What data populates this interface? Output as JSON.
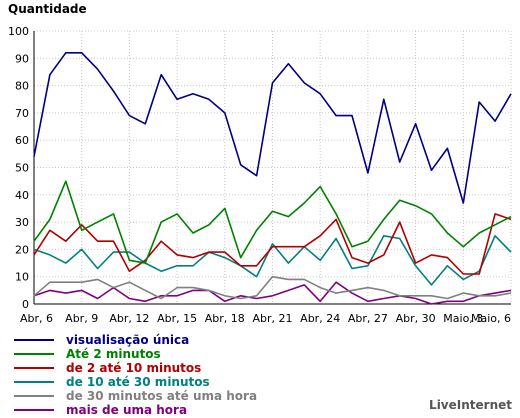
{
  "chart_data": {
    "type": "line",
    "ylabel": "Quantidade",
    "ylim": [
      0,
      100
    ],
    "yticks": [
      0,
      10,
      20,
      30,
      40,
      50,
      60,
      70,
      80,
      90,
      100
    ],
    "grid": true,
    "x": [
      "Abr, 6",
      "Abr, 7",
      "Abr, 8",
      "Abr, 9",
      "Abr, 10",
      "Abr, 11",
      "Abr, 12",
      "Abr, 13",
      "Abr, 14",
      "Abr, 15",
      "Abr, 16",
      "Abr, 17",
      "Abr, 18",
      "Abr, 19",
      "Abr, 20",
      "Abr, 21",
      "Abr, 22",
      "Abr, 23",
      "Abr, 24",
      "Abr, 25",
      "Abr, 26",
      "Abr, 27",
      "Abr, 28",
      "Abr, 29",
      "Abr, 30",
      "Maio, 1",
      "Maio, 2",
      "Maio, 3",
      "Maio, 4",
      "Maio, 5",
      "Maio, 6"
    ],
    "xtick_labels": [
      "Abr, 6",
      "Abr, 9",
      "Abr, 12",
      "Abr, 15",
      "Abr, 18",
      "Abr, 21",
      "Abr, 24",
      "Abr, 27",
      "Abr, 30",
      "Maio, 3",
      "Maio, 6"
    ],
    "series": [
      {
        "name": "visualisação única",
        "color": "#000080",
        "values": [
          54,
          84,
          92,
          92,
          86,
          78,
          69,
          66,
          84,
          75,
          77,
          75,
          70,
          51,
          47,
          81,
          88,
          81,
          77,
          69,
          69,
          48,
          75,
          52,
          66,
          49,
          57,
          37,
          74,
          67,
          77
        ]
      },
      {
        "name": "Até 2 minutos",
        "color": "#008000",
        "values": [
          23,
          31,
          45,
          27,
          30,
          33,
          16,
          15,
          30,
          33,
          26,
          29,
          35,
          17,
          27,
          34,
          32,
          37,
          43,
          33,
          21,
          23,
          31,
          38,
          36,
          33,
          26,
          21,
          26,
          29,
          32
        ]
      },
      {
        "name": "de 2 até 10 minutos",
        "color": "#b00000",
        "values": [
          18,
          27,
          23,
          29,
          23,
          23,
          12,
          16,
          23,
          18,
          17,
          19,
          19,
          14,
          14,
          21,
          21,
          21,
          25,
          31,
          17,
          15,
          18,
          30,
          15,
          18,
          17,
          11,
          11,
          33,
          31
        ]
      },
      {
        "name": "de 10 até 30 minutos",
        "color": "#008080",
        "values": [
          20,
          18,
          15,
          20,
          13,
          19,
          19,
          15,
          12,
          14,
          14,
          19,
          17,
          14,
          10,
          22,
          15,
          21,
          16,
          24,
          13,
          14,
          25,
          24,
          14,
          7,
          14,
          9,
          12,
          25,
          19
        ]
      },
      {
        "name": "de 30 minutos até uma hora",
        "color": "#808080",
        "values": [
          3,
          8,
          8,
          8,
          9,
          6,
          8,
          5,
          2,
          6,
          6,
          5,
          3,
          2,
          3,
          10,
          9,
          9,
          6,
          4,
          5,
          6,
          5,
          3,
          3,
          3,
          2,
          4,
          3,
          3,
          4
        ]
      },
      {
        "name": "mais de uma hora",
        "color": "#800080",
        "values": [
          3,
          5,
          4,
          5,
          2,
          6,
          2,
          1,
          3,
          3,
          5,
          5,
          1,
          3,
          2,
          3,
          5,
          7,
          1,
          8,
          4,
          1,
          2,
          3,
          2,
          0,
          1,
          1,
          3,
          4,
          5
        ]
      }
    ]
  },
  "watermark": "LiveInternet"
}
